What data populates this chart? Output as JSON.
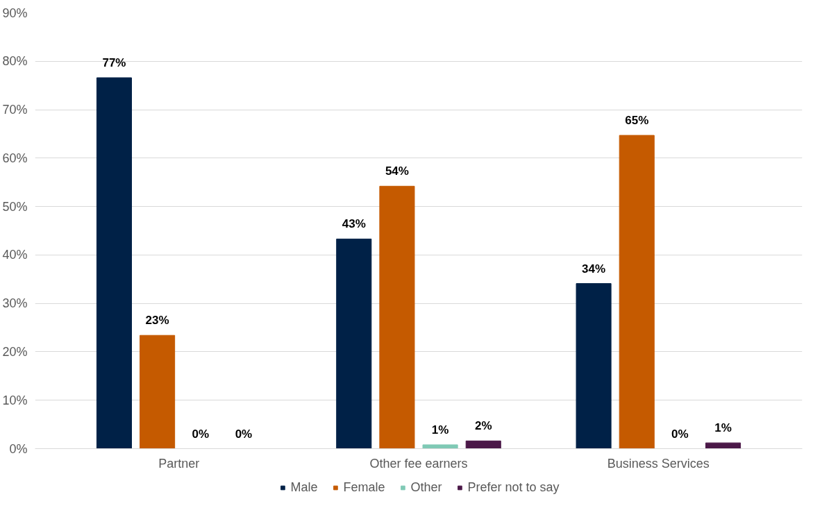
{
  "chart_data": {
    "type": "bar",
    "categories": [
      "Partner",
      "Other fee earners",
      "Business Services"
    ],
    "series": [
      {
        "name": "Male",
        "color": "#002147",
        "values": [
          76.6,
          43.3,
          34.1
        ],
        "value_labels": [
          "77%",
          "43%",
          "34%"
        ]
      },
      {
        "name": "Female",
        "color": "#c55a00",
        "values": [
          23.4,
          54.2,
          64.7
        ],
        "value_labels": [
          "23%",
          "54%",
          "65%"
        ]
      },
      {
        "name": "Other",
        "color": "#7fc9b5",
        "values": [
          0,
          0.8,
          0
        ],
        "value_labels": [
          "0%",
          "1%",
          "0%"
        ]
      },
      {
        "name": "Prefer not to say",
        "color": "#4b1848",
        "values": [
          0,
          1.6,
          1.2
        ],
        "value_labels": [
          "0%",
          "2%",
          "1%"
        ]
      }
    ],
    "ylim": [
      0,
      90
    ],
    "yticks": [
      {
        "value": 0,
        "label": "0%"
      },
      {
        "value": 10,
        "label": "10%"
      },
      {
        "value": 20,
        "label": "20%"
      },
      {
        "value": 30,
        "label": "30%"
      },
      {
        "value": 40,
        "label": "40%"
      },
      {
        "value": 50,
        "label": "50%"
      },
      {
        "value": 60,
        "label": "60%"
      },
      {
        "value": 70,
        "label": "70%"
      },
      {
        "value": 80,
        "label": "80%"
      },
      {
        "value": 90,
        "label": "90%"
      }
    ],
    "grid": "y",
    "legend": "bottom"
  }
}
